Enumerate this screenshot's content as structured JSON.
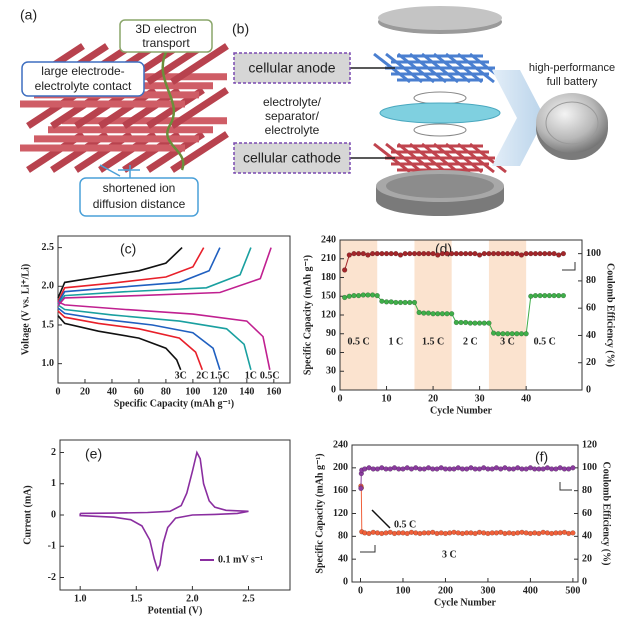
{
  "panel_a": {
    "label": "(a)",
    "electron": [
      "3D electron",
      "transport"
    ],
    "contact": [
      "large electrode-",
      "electrolyte contact"
    ],
    "diffusion": [
      "shortened ion",
      "diffusion distance"
    ]
  },
  "panel_b": {
    "label": "(b)",
    "anode": "cellular anode",
    "electrolyte": [
      "electrolyte/",
      "separator/",
      "electrolyte"
    ],
    "cathode": "cellular cathode",
    "battery": [
      "high-performance",
      "full battery"
    ]
  },
  "chart_data": [
    {
      "type": "line",
      "panel_label": "(c)",
      "xlabel": "Specific Capacity (mAh g⁻¹)",
      "ylabel": "Voltage (V vs. Li⁺/Li)",
      "xlim": [
        0,
        172
      ],
      "ylim": [
        0.75,
        2.65
      ],
      "xticks": [
        0,
        20,
        40,
        60,
        80,
        100,
        120,
        140,
        160
      ],
      "yticks": [
        {
          "value": 1,
          "label": "1.0"
        },
        1.5,
        {
          "value": 2,
          "label": "2.0"
        },
        2.5
      ],
      "series": [
        {
          "name": "3C",
          "color": "#111111",
          "x": [
            0,
            5,
            30,
            60,
            80,
            88,
            91,
            null,
            0,
            5,
            30,
            60,
            80,
            92
          ],
          "values": [
            1.62,
            1.52,
            1.42,
            1.33,
            1.2,
            1.05,
            0.92,
            null,
            1.85,
            2.05,
            2.12,
            2.2,
            2.3,
            2.5
          ]
        },
        {
          "name": "2C",
          "color": "#e8202a",
          "x": [
            0,
            5,
            30,
            60,
            90,
            102,
            107,
            null,
            0,
            5,
            40,
            80,
            100,
            108
          ],
          "values": [
            1.68,
            1.6,
            1.52,
            1.45,
            1.33,
            1.15,
            0.92,
            null,
            1.8,
            1.98,
            2.04,
            2.12,
            2.25,
            2.5
          ]
        },
        {
          "name": "1.5C",
          "color": "#2060c0",
          "x": [
            0,
            5,
            30,
            70,
            100,
            115,
            120,
            null,
            0,
            5,
            40,
            90,
            112,
            120
          ],
          "values": [
            1.72,
            1.65,
            1.58,
            1.5,
            1.4,
            1.2,
            0.92,
            null,
            1.78,
            1.93,
            1.98,
            2.05,
            2.2,
            2.5
          ]
        },
        {
          "name": "1C",
          "color": "#1aa0a0",
          "x": [
            0,
            5,
            40,
            90,
            125,
            138,
            143,
            null,
            0,
            5,
            50,
            110,
            135,
            143
          ],
          "values": [
            1.76,
            1.7,
            1.63,
            1.55,
            1.45,
            1.25,
            0.92,
            null,
            1.76,
            1.88,
            1.93,
            1.98,
            2.15,
            2.5
          ]
        },
        {
          "name": "0.5C",
          "color": "#c02090",
          "x": [
            0,
            5,
            50,
            100,
            140,
            152,
            157,
            null,
            0,
            5,
            60,
            120,
            150,
            158
          ],
          "values": [
            1.8,
            1.76,
            1.7,
            1.64,
            1.55,
            1.35,
            0.92,
            null,
            1.75,
            1.85,
            1.88,
            1.92,
            2.1,
            2.5
          ]
        }
      ]
    },
    {
      "type": "scatter",
      "panel_label": "(d)",
      "xlabel": "Cycle Number",
      "ylabel": "Specific Capacity (mAh g⁻¹)",
      "y2label": "Coulomb Efficiency (%)",
      "xlim": [
        0,
        52
      ],
      "ylim": [
        0,
        240
      ],
      "y2lim": [
        0,
        110
      ],
      "xticks": [
        0,
        10,
        20,
        30,
        40
      ],
      "yticks": [
        0,
        30,
        60,
        90,
        120,
        150,
        180,
        210,
        240
      ],
      "y2ticks": [
        0,
        20,
        40,
        60,
        80,
        100
      ],
      "shade_color": "#fbe3cf",
      "rate_segments": [
        {
          "label": "0.5 C",
          "range": [
            0,
            8
          ],
          "shaded": true
        },
        {
          "label": "1 C",
          "range": [
            8,
            16
          ],
          "shaded": false
        },
        {
          "label": "1.5 C",
          "range": [
            16,
            24
          ],
          "shaded": true
        },
        {
          "label": "2 C",
          "range": [
            24,
            32
          ],
          "shaded": false
        },
        {
          "label": "3 C",
          "range": [
            32,
            40
          ],
          "shaded": true
        },
        {
          "label": "0.5 C",
          "range": [
            40,
            48
          ],
          "shaded": false
        }
      ],
      "series": [
        {
          "color": "#3fae49",
          "x": [
            1,
            2,
            3,
            4,
            5,
            6,
            7,
            8,
            9,
            10,
            11,
            12,
            13,
            14,
            15,
            16,
            17,
            18,
            19,
            20,
            21,
            22,
            23,
            24,
            25,
            26,
            27,
            28,
            29,
            30,
            31,
            32,
            33,
            34,
            35,
            36,
            37,
            38,
            39,
            40,
            41,
            42,
            43,
            44,
            45,
            46,
            47,
            48
          ],
          "values": [
            148,
            150,
            151,
            151,
            152,
            152,
            152,
            151,
            142,
            141,
            141,
            140,
            140,
            140,
            140,
            140,
            124,
            123,
            123,
            122,
            122,
            122,
            122,
            122,
            108,
            108,
            108,
            107,
            107,
            107,
            107,
            107,
            91,
            90,
            90,
            90,
            90,
            90,
            90,
            90,
            150,
            151,
            151,
            151,
            151,
            151,
            151,
            151
          ]
        },
        {
          "color": "#a3262a",
          "axis": "y2",
          "x": [
            1,
            2,
            3,
            4,
            5,
            6,
            7,
            8,
            9,
            10,
            11,
            12,
            13,
            14,
            15,
            16,
            17,
            18,
            19,
            20,
            21,
            22,
            23,
            24,
            25,
            26,
            27,
            28,
            29,
            30,
            31,
            32,
            33,
            34,
            35,
            36,
            37,
            38,
            39,
            40,
            41,
            42,
            43,
            44,
            45,
            46,
            47,
            48
          ],
          "values": [
            88,
            99,
            100,
            100,
            100,
            99,
            100,
            100,
            100,
            100,
            100,
            100,
            99,
            100,
            100,
            100,
            100,
            100,
            100,
            100,
            99,
            100,
            100,
            100,
            100,
            100,
            100,
            100,
            100,
            99,
            100,
            100,
            100,
            100,
            100,
            100,
            100,
            100,
            99,
            100,
            100,
            100,
            100,
            100,
            100,
            100,
            99,
            100
          ]
        }
      ]
    },
    {
      "type": "line",
      "panel_label": "(e)",
      "xlabel": "Potential (V)",
      "ylabel": "Current (mA)",
      "legend": "lower right",
      "xlim": [
        0.82,
        2.87
      ],
      "ylim": [
        -2.4,
        2.4
      ],
      "xticks": [
        {
          "value": 1,
          "label": "1.0"
        },
        1.5,
        {
          "value": 2,
          "label": "2.0"
        },
        2.5
      ],
      "yticks": [
        -2,
        -1,
        0,
        1,
        2
      ],
      "series": [
        {
          "name": "0.1 mV s⁻¹",
          "color": "#8a2ea0",
          "x": [
            1.0,
            1.3,
            1.6,
            1.8,
            1.9,
            1.95,
            2.0,
            2.04,
            2.07,
            2.1,
            2.15,
            2.2,
            2.3,
            2.5,
            2.4,
            2.2,
            2.0,
            1.85,
            1.78,
            1.74,
            1.71,
            1.69,
            1.66,
            1.62,
            1.55,
            1.45,
            1.3,
            1.0,
            1.0
          ],
          "values": [
            0.05,
            0.06,
            0.08,
            0.12,
            0.3,
            0.7,
            1.4,
            2.0,
            1.8,
            1.0,
            0.45,
            0.25,
            0.15,
            0.12,
            0.05,
            0.02,
            0.0,
            -0.1,
            -0.4,
            -0.9,
            -1.6,
            -1.75,
            -1.4,
            -0.8,
            -0.35,
            -0.15,
            -0.07,
            -0.02,
            0.05
          ]
        }
      ]
    },
    {
      "type": "scatter",
      "panel_label": "(f)",
      "xlabel": "Cycle Number",
      "ylabel": "Specific Capacity (mAh g⁻¹)",
      "y2label": "Coulomb Efficiency (%)",
      "annotations": [
        "0.5 C",
        "3 C"
      ],
      "xlim": [
        -20,
        512
      ],
      "ylim": [
        0,
        240
      ],
      "y2lim": [
        0,
        120
      ],
      "xticks": [
        0,
        100,
        200,
        300,
        400,
        500
      ],
      "yticks": [
        0,
        40,
        80,
        120,
        160,
        200,
        240
      ],
      "y2ticks": [
        0,
        20,
        40,
        60,
        80,
        100,
        120
      ],
      "series": [
        {
          "color": "#f0603a",
          "x": [
            1,
            2,
            3,
            10,
            20,
            30,
            40,
            50,
            60,
            70,
            80,
            90,
            100,
            110,
            120,
            130,
            140,
            150,
            160,
            170,
            180,
            190,
            200,
            210,
            220,
            230,
            240,
            250,
            260,
            270,
            280,
            290,
            300,
            310,
            320,
            330,
            340,
            350,
            360,
            370,
            380,
            390,
            400,
            410,
            420,
            430,
            440,
            450,
            460,
            470,
            480,
            490,
            500
          ],
          "values": [
            168,
            165,
            88,
            86,
            85,
            87,
            86,
            85,
            86,
            87,
            85,
            86,
            86,
            85,
            87,
            86,
            85,
            86,
            86,
            87,
            85,
            86,
            85,
            86,
            87,
            86,
            85,
            86,
            86,
            85,
            87,
            86,
            85,
            86,
            86,
            87,
            85,
            86,
            85,
            86,
            87,
            86,
            85,
            86,
            85,
            87,
            86,
            85,
            86,
            86,
            87,
            85,
            86
          ]
        },
        {
          "color": "#8a3b9e",
          "axis": "y2",
          "x": [
            1,
            2,
            3,
            10,
            20,
            30,
            40,
            50,
            60,
            70,
            80,
            90,
            100,
            110,
            120,
            130,
            140,
            150,
            160,
            170,
            180,
            190,
            200,
            210,
            220,
            230,
            240,
            250,
            260,
            270,
            280,
            290,
            300,
            310,
            320,
            330,
            340,
            350,
            360,
            370,
            380,
            390,
            400,
            410,
            420,
            430,
            440,
            450,
            460,
            470,
            480,
            490,
            500
          ],
          "values": [
            82,
            95,
            98,
            99,
            100,
            99,
            99,
            100,
            99,
            99,
            100,
            99,
            99,
            100,
            99,
            100,
            99,
            99,
            100,
            99,
            99,
            100,
            99,
            99,
            99,
            100,
            99,
            99,
            100,
            99,
            99,
            100,
            99,
            99,
            100,
            99,
            100,
            99,
            99,
            100,
            99,
            99,
            100,
            99,
            99,
            99,
            100,
            99,
            99,
            100,
            99,
            99,
            100
          ]
        }
      ]
    }
  ]
}
